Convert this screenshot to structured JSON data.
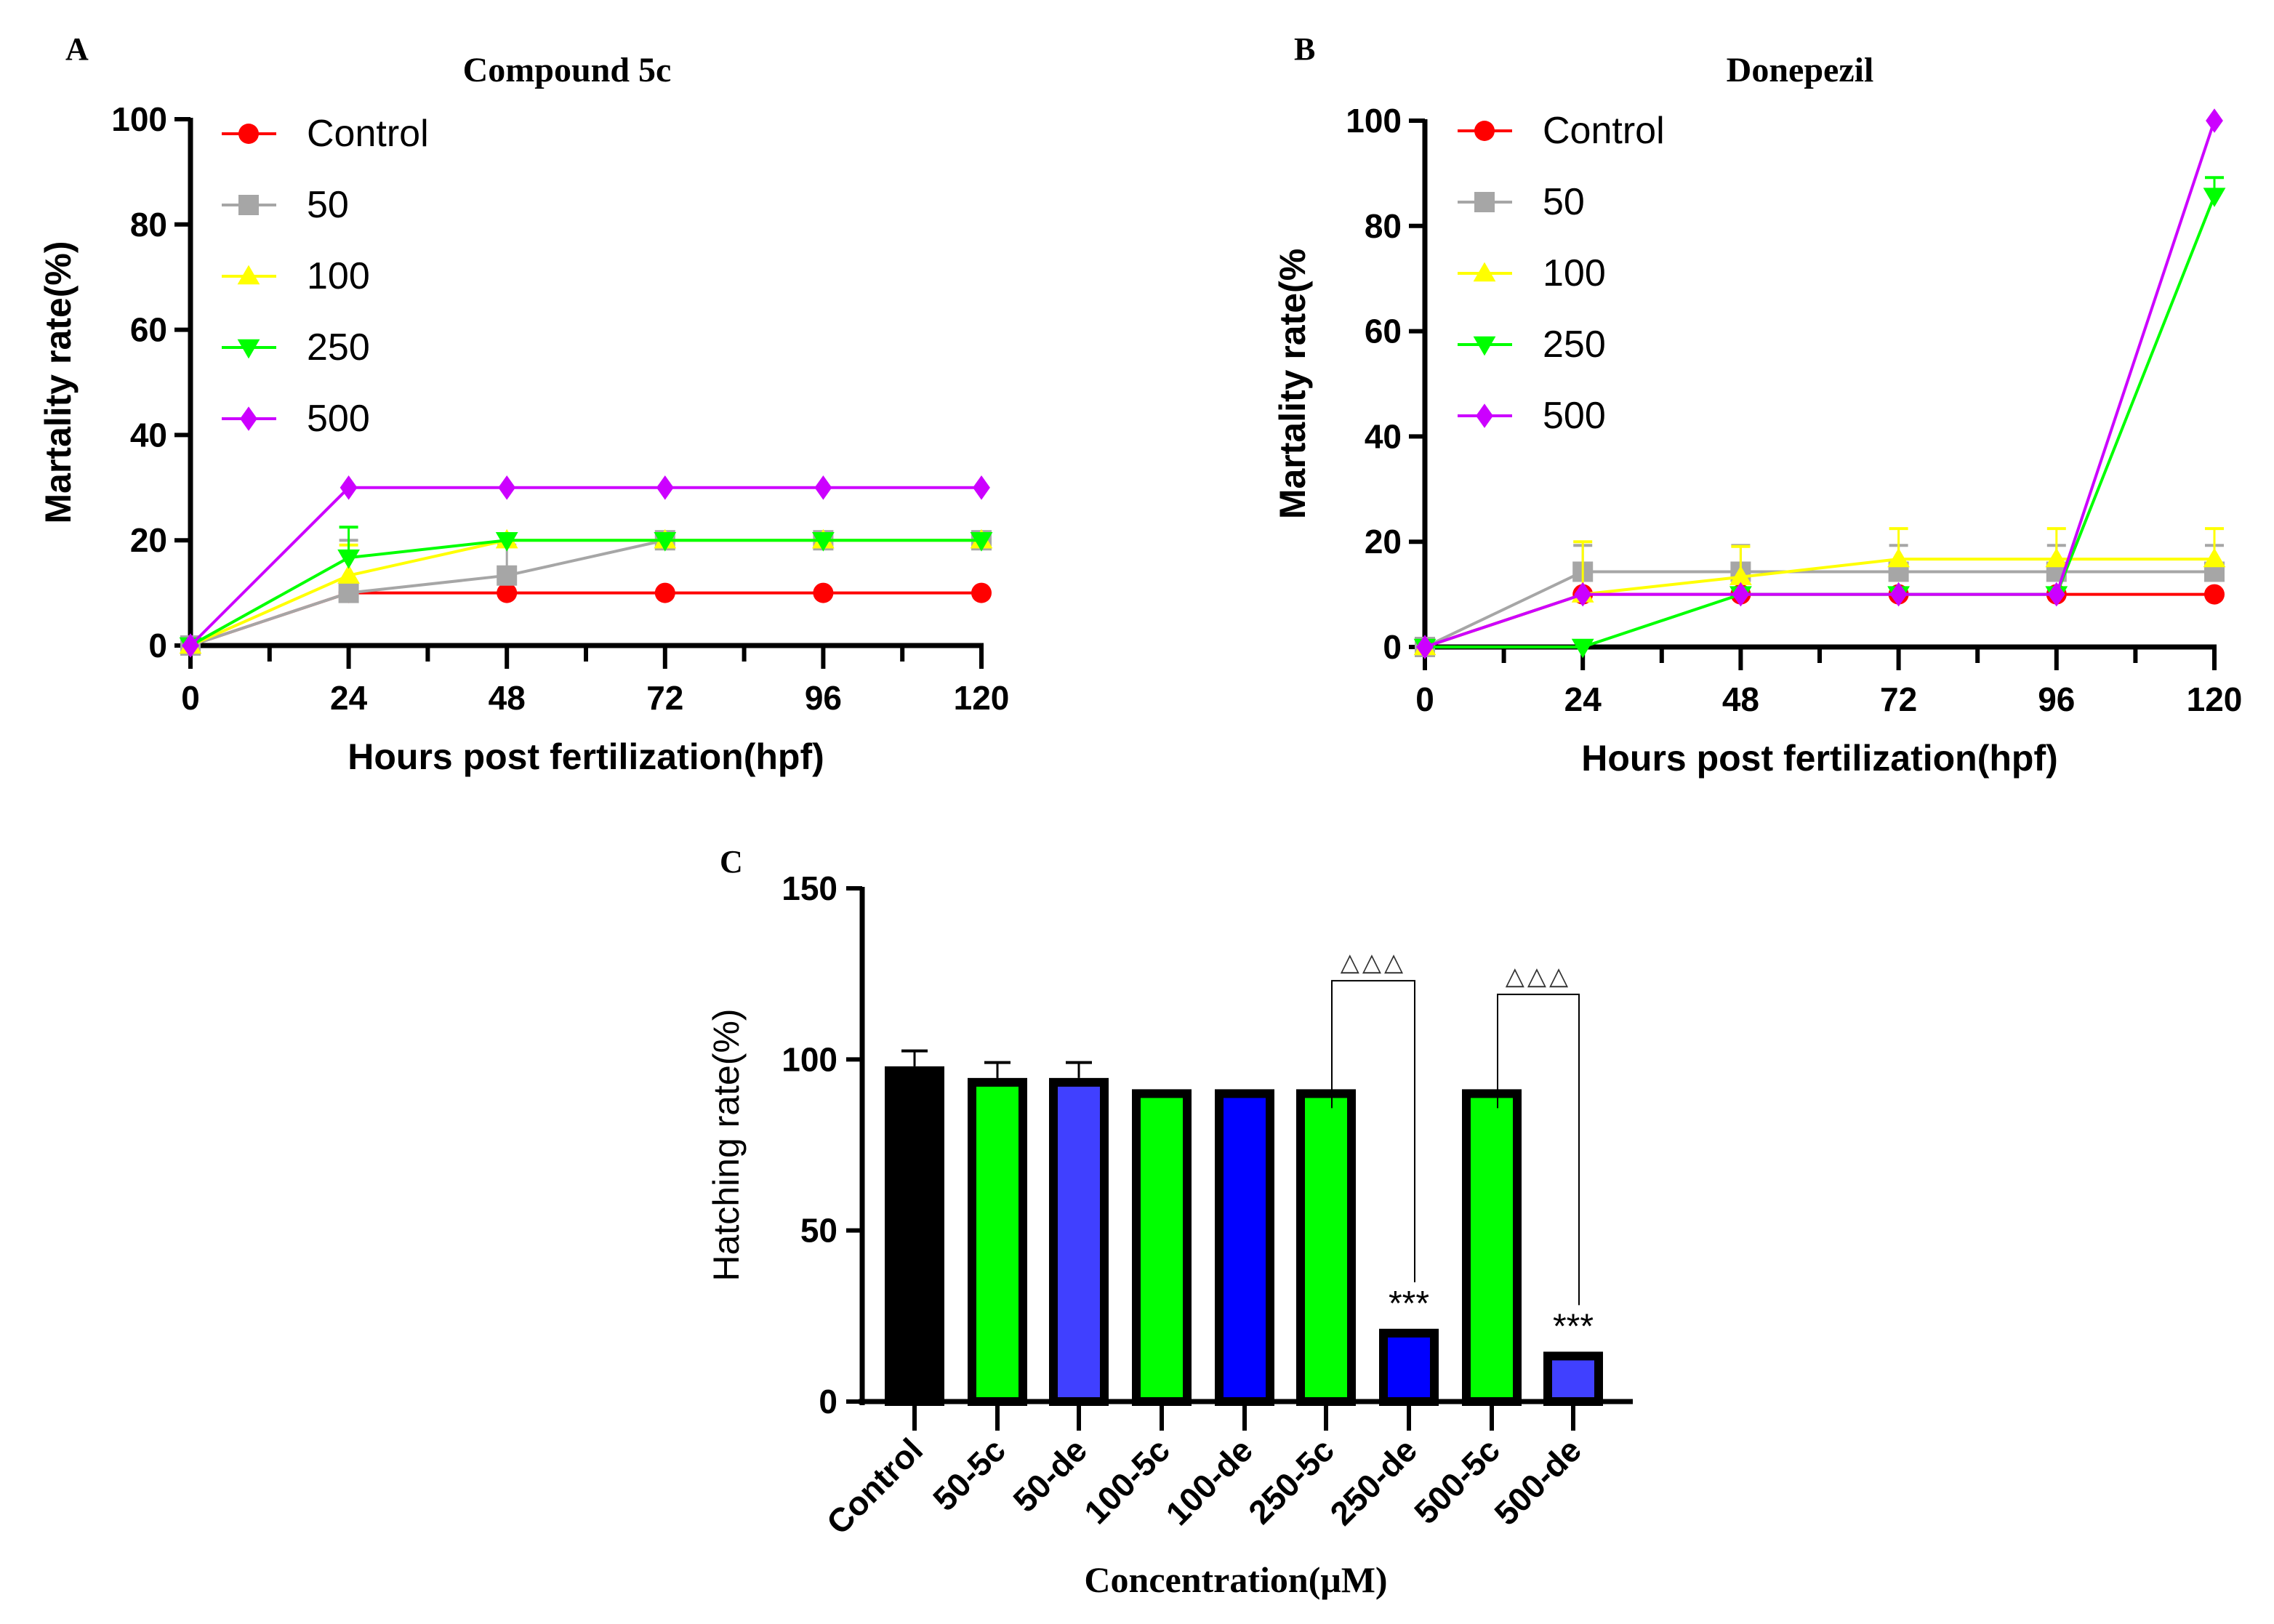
{
  "chart_data": [
    {
      "type": "line",
      "panel_label": "A",
      "title": "Compound 5c",
      "xlabel": "Hours post fertilization(hpf)",
      "ylabel": "Martality rate(%)",
      "x": [
        0,
        24,
        48,
        72,
        96,
        120
      ],
      "xticks": [
        "0",
        "24",
        "48",
        "72",
        "96",
        "120"
      ],
      "yticks": [
        "0",
        "20",
        "40",
        "60",
        "80",
        "100"
      ],
      "xlim": [
        0,
        120
      ],
      "ylim": [
        0,
        100
      ],
      "legend_position": "top-left",
      "series": [
        {
          "name": "Control",
          "color": "#ff0000",
          "marker": "circle",
          "values": [
            0,
            10,
            10,
            10,
            10,
            10
          ],
          "errors": [
            0,
            0,
            0,
            0,
            0,
            0
          ]
        },
        {
          "name": "50",
          "color": "#a6a6a6",
          "marker": "square",
          "values": [
            0,
            10,
            13.3,
            20,
            20,
            20
          ],
          "errors": [
            0,
            10,
            5.8,
            0,
            0,
            0
          ]
        },
        {
          "name": "100",
          "color": "#ffff00",
          "marker": "triangle-up",
          "values": [
            0,
            13.3,
            20,
            20,
            20,
            20
          ],
          "errors": [
            0,
            5.8,
            0,
            0,
            0,
            0
          ]
        },
        {
          "name": "250",
          "color": "#00ff00",
          "marker": "triangle-down",
          "values": [
            0,
            16.7,
            20,
            20,
            20,
            20
          ],
          "errors": [
            0,
            5.8,
            0,
            0,
            0,
            0
          ]
        },
        {
          "name": "500",
          "color": "#cc00ff",
          "marker": "diamond",
          "values": [
            0,
            30,
            30,
            30,
            30,
            30
          ],
          "errors": [
            0,
            0,
            0,
            0,
            0,
            0
          ]
        }
      ]
    },
    {
      "type": "line",
      "panel_label": "B",
      "title": "Donepezil",
      "xlabel": "Hours post fertilization(hpf)",
      "ylabel": "Martality rate(%",
      "x": [
        0,
        24,
        48,
        72,
        96,
        120
      ],
      "xticks": [
        "0",
        "24",
        "48",
        "72",
        "96",
        "120"
      ],
      "yticks": [
        "0",
        "20",
        "40",
        "60",
        "80",
        "100"
      ],
      "xlim": [
        0,
        120
      ],
      "ylim": [
        0,
        100
      ],
      "legend_position": "top-left",
      "series": [
        {
          "name": "Control",
          "color": "#ff0000",
          "marker": "circle",
          "values": [
            0,
            10,
            10,
            10,
            10,
            10
          ],
          "errors": [
            0,
            0,
            0,
            0,
            0,
            0
          ]
        },
        {
          "name": "50",
          "color": "#a6a6a6",
          "marker": "square",
          "values": [
            0,
            14.3,
            14.3,
            14.3,
            14.3,
            14.3
          ],
          "errors": [
            0,
            5,
            5,
            5,
            5,
            5
          ]
        },
        {
          "name": "100",
          "color": "#ffff00",
          "marker": "triangle-up",
          "values": [
            0,
            10,
            13.3,
            16.7,
            16.7,
            16.7
          ],
          "errors": [
            0,
            10,
            5.8,
            5.8,
            5.8,
            5.8
          ]
        },
        {
          "name": "250",
          "color": "#00ff00",
          "marker": "triangle-down",
          "values": [
            0,
            0,
            10,
            10,
            10,
            85.7
          ],
          "errors": [
            0,
            0,
            0,
            0,
            0,
            3.5
          ]
        },
        {
          "name": "500",
          "color": "#cc00ff",
          "marker": "diamond",
          "values": [
            0,
            10,
            10,
            10,
            10,
            100
          ],
          "errors": [
            0,
            0,
            0,
            0,
            0,
            0
          ]
        }
      ]
    },
    {
      "type": "bar",
      "panel_label": "C",
      "xlabel": "Concentration(μM)",
      "ylabel": "Hatching rate(%)",
      "yticks": [
        "0",
        "50",
        "100",
        "150"
      ],
      "ylim": [
        0,
        150
      ],
      "categories": [
        "Control",
        "50-5c",
        "50-de",
        "100-5c",
        "100-de",
        "250-5c",
        "250-de",
        "500-5c",
        "500-de"
      ],
      "values": [
        96.7,
        93.3,
        93.3,
        90,
        90,
        90,
        20,
        90,
        13.3
      ],
      "errors": [
        5.8,
        5.8,
        5.8,
        0,
        0,
        0,
        0,
        0,
        0
      ],
      "colors": [
        "#000000",
        "#00ff00",
        "#4040ff",
        "#00ff00",
        "#0000ff",
        "#00ff00",
        "#0000ff",
        "#00ff00",
        "#4040ff"
      ],
      "annotations": [
        {
          "category": "250-de",
          "text": "***"
        },
        {
          "category": "500-de",
          "text": "***"
        }
      ],
      "comparisons": [
        {
          "from": "250-5c",
          "to": "250-de",
          "text": "△△△",
          "level": 123
        },
        {
          "from": "500-5c",
          "to": "500-de",
          "text": "△△△",
          "level": 119
        }
      ]
    }
  ]
}
